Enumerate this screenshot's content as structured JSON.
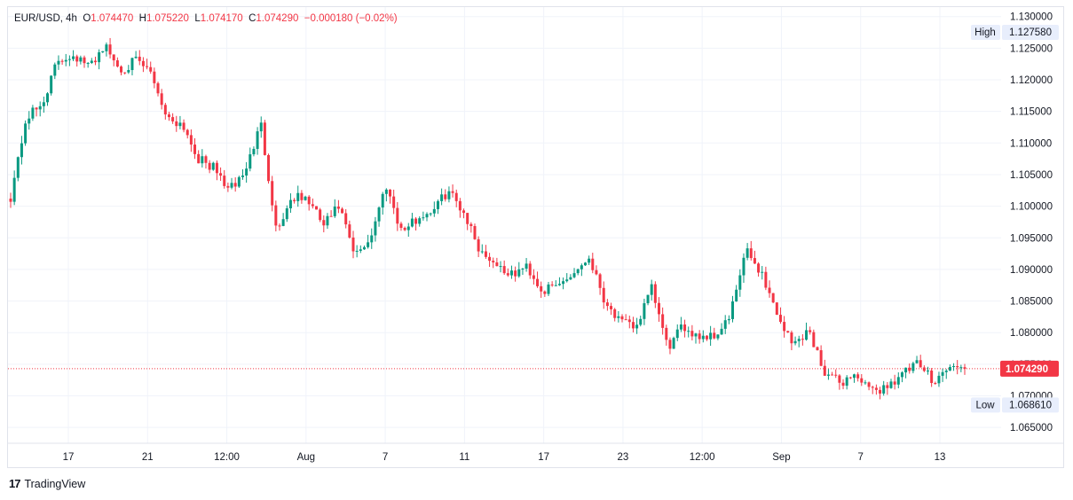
{
  "header": {
    "symbol": "EUR/USD",
    "interval": "4h",
    "o_label": "O",
    "o_value": "1.074470",
    "h_label": "H",
    "h_value": "1.075220",
    "l_label": "L",
    "l_value": "1.074170",
    "c_label": "C",
    "c_value": "1.074290",
    "change": "−0.000180 (−0.02%)"
  },
  "price_axis": {
    "ticks": [
      "1.130000",
      "1.125000",
      "1.120000",
      "1.115000",
      "1.110000",
      "1.105000",
      "1.100000",
      "1.095000",
      "1.090000",
      "1.085000",
      "1.080000",
      "1.075000",
      "1.070000",
      "1.065000"
    ],
    "high_label": "High",
    "high_value": "1.127580",
    "low_label": "Low",
    "low_value": "1.068610",
    "last_value": "1.074290"
  },
  "time_axis": {
    "ticks": [
      "17",
      "21",
      "12:00",
      "Aug",
      "7",
      "11",
      "17",
      "23",
      "12:00",
      "Sep",
      "7",
      "13"
    ]
  },
  "footer": {
    "brand": "TradingView",
    "logo_text": "17"
  },
  "colors": {
    "up": "#089981",
    "down": "#f23645",
    "grid": "#f0f3fa",
    "text": "#131722"
  },
  "chart_data": {
    "type": "candlestick",
    "symbol": "EUR/USD",
    "interval": "4h",
    "ylim": [
      1.0625,
      1.1315
    ],
    "high": 1.12758,
    "low": 1.06861,
    "last": 1.07429,
    "ohlc_path": [
      1.1015,
      1.114,
      1.116,
      1.123,
      1.124,
      1.122,
      1.1255,
      1.1215,
      1.123,
      1.121,
      1.114,
      1.113,
      1.1075,
      1.106,
      1.1025,
      1.1055,
      1.113,
      1.096,
      1.1015,
      1.101,
      1.097,
      1.1,
      1.092,
      1.095,
      1.1035,
      1.096,
      1.098,
      1.0995,
      1.1025,
      1.099,
      1.093,
      1.091,
      1.089,
      1.0905,
      1.0865,
      1.0875,
      1.0895,
      1.092,
      1.085,
      1.0815,
      1.081,
      1.087,
      1.0775,
      1.081,
      1.0795,
      1.0795,
      1.0825,
      1.093,
      1.0895,
      1.083,
      1.078,
      1.0805,
      1.074,
      1.072,
      1.0735,
      1.0705,
      1.0715,
      1.0735,
      1.075,
      1.0725,
      1.0745,
      1.07429
    ]
  }
}
